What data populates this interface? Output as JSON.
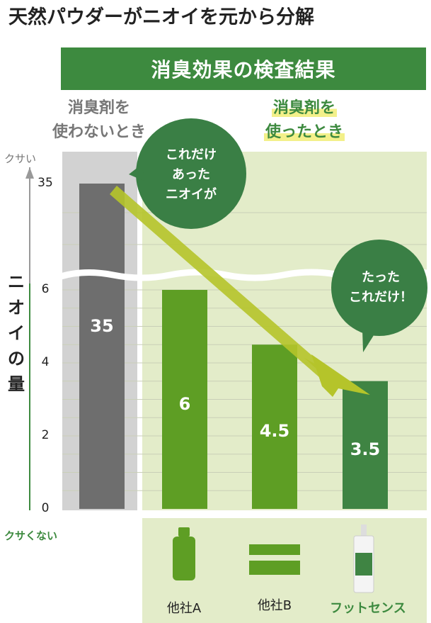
{
  "headline": "天然パウダーがニオイを元から分解",
  "banner": "消臭効果の検査結果",
  "labels": {
    "before_line1": "消臭剤を",
    "before_line2": "使わないとき",
    "after_line1": "消臭剤を",
    "after_line2": "使ったとき",
    "axis_top": "クサい",
    "axis_bottom": "クサくない",
    "y_axis_chars": [
      "ニ",
      "オ",
      "イ",
      "の",
      "量"
    ]
  },
  "bubbles": {
    "left": [
      "これだけ",
      "あった",
      "ニオイが"
    ],
    "right": [
      "たった",
      "これだけ！"
    ]
  },
  "colors": {
    "banner": "#3d8a3f",
    "bar_before": "#6e6e6e",
    "bar_competitor": "#5e9e24",
    "bar_brand": "#3f8443",
    "panel_before": "#d2d2d2",
    "panel_after": "#e3ecc9",
    "arrow": "#b5c42a"
  },
  "products": [
    {
      "label": "他社A",
      "icon": "bottle-icon"
    },
    {
      "label": "他社B",
      "icon": "box-icon"
    },
    {
      "label": "フットセンス",
      "icon": "spray-bottle-icon"
    }
  ],
  "chart_data": {
    "type": "bar",
    "categories": [
      "消臭剤を使わないとき",
      "他社A",
      "他社B",
      "フットセンス"
    ],
    "values": [
      35,
      6,
      4.5,
      3.5
    ],
    "value_labels": [
      "35",
      "6",
      "4.5",
      "3.5"
    ],
    "ylabel": "ニオイの量",
    "yticks": [
      "0",
      "2",
      "4",
      "6",
      "35"
    ],
    "axis_break": true,
    "grid": true
  }
}
